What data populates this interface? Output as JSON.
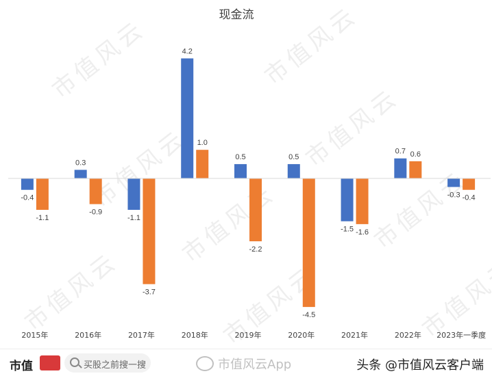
{
  "chart_data": {
    "type": "bar",
    "title": "现金流",
    "categories": [
      "2015年",
      "2016年",
      "2017年",
      "2018年",
      "2019年",
      "2020年",
      "2021年",
      "2022年",
      "2023年一季度"
    ],
    "series": [
      {
        "values": [
          -0.4,
          0.3,
          -1.1,
          4.2,
          0.5,
          0.5,
          -1.5,
          0.7,
          -0.3
        ],
        "labels": [
          "-0.4",
          "0.3",
          "-1.1",
          "4.2",
          "0.5",
          "0.5",
          "-1.5",
          "0.7",
          "-0.3"
        ],
        "color": "#4472c4"
      },
      {
        "values": [
          -1.1,
          -0.9,
          -3.7,
          1.0,
          -2.2,
          -4.5,
          -1.6,
          0.6,
          -0.4
        ],
        "labels": [
          "-1.1",
          "-0.9",
          "-3.7",
          "1.0",
          "-2.2",
          "-4.5",
          "-1.6",
          "0.6",
          "-0.4"
        ],
        "color": "#ed7d31"
      }
    ],
    "ylim": [
      -5.0,
      4.5
    ],
    "grid": false,
    "legend": "none",
    "axis_color": "#d9d9d9",
    "label_color": "#404040"
  },
  "watermark": "市值风云",
  "footer": {
    "brand": "市值",
    "search_placeholder": "买股之前搜一搜",
    "weibo": "市值风云App",
    "source": "头条 @市值风云客户端"
  }
}
